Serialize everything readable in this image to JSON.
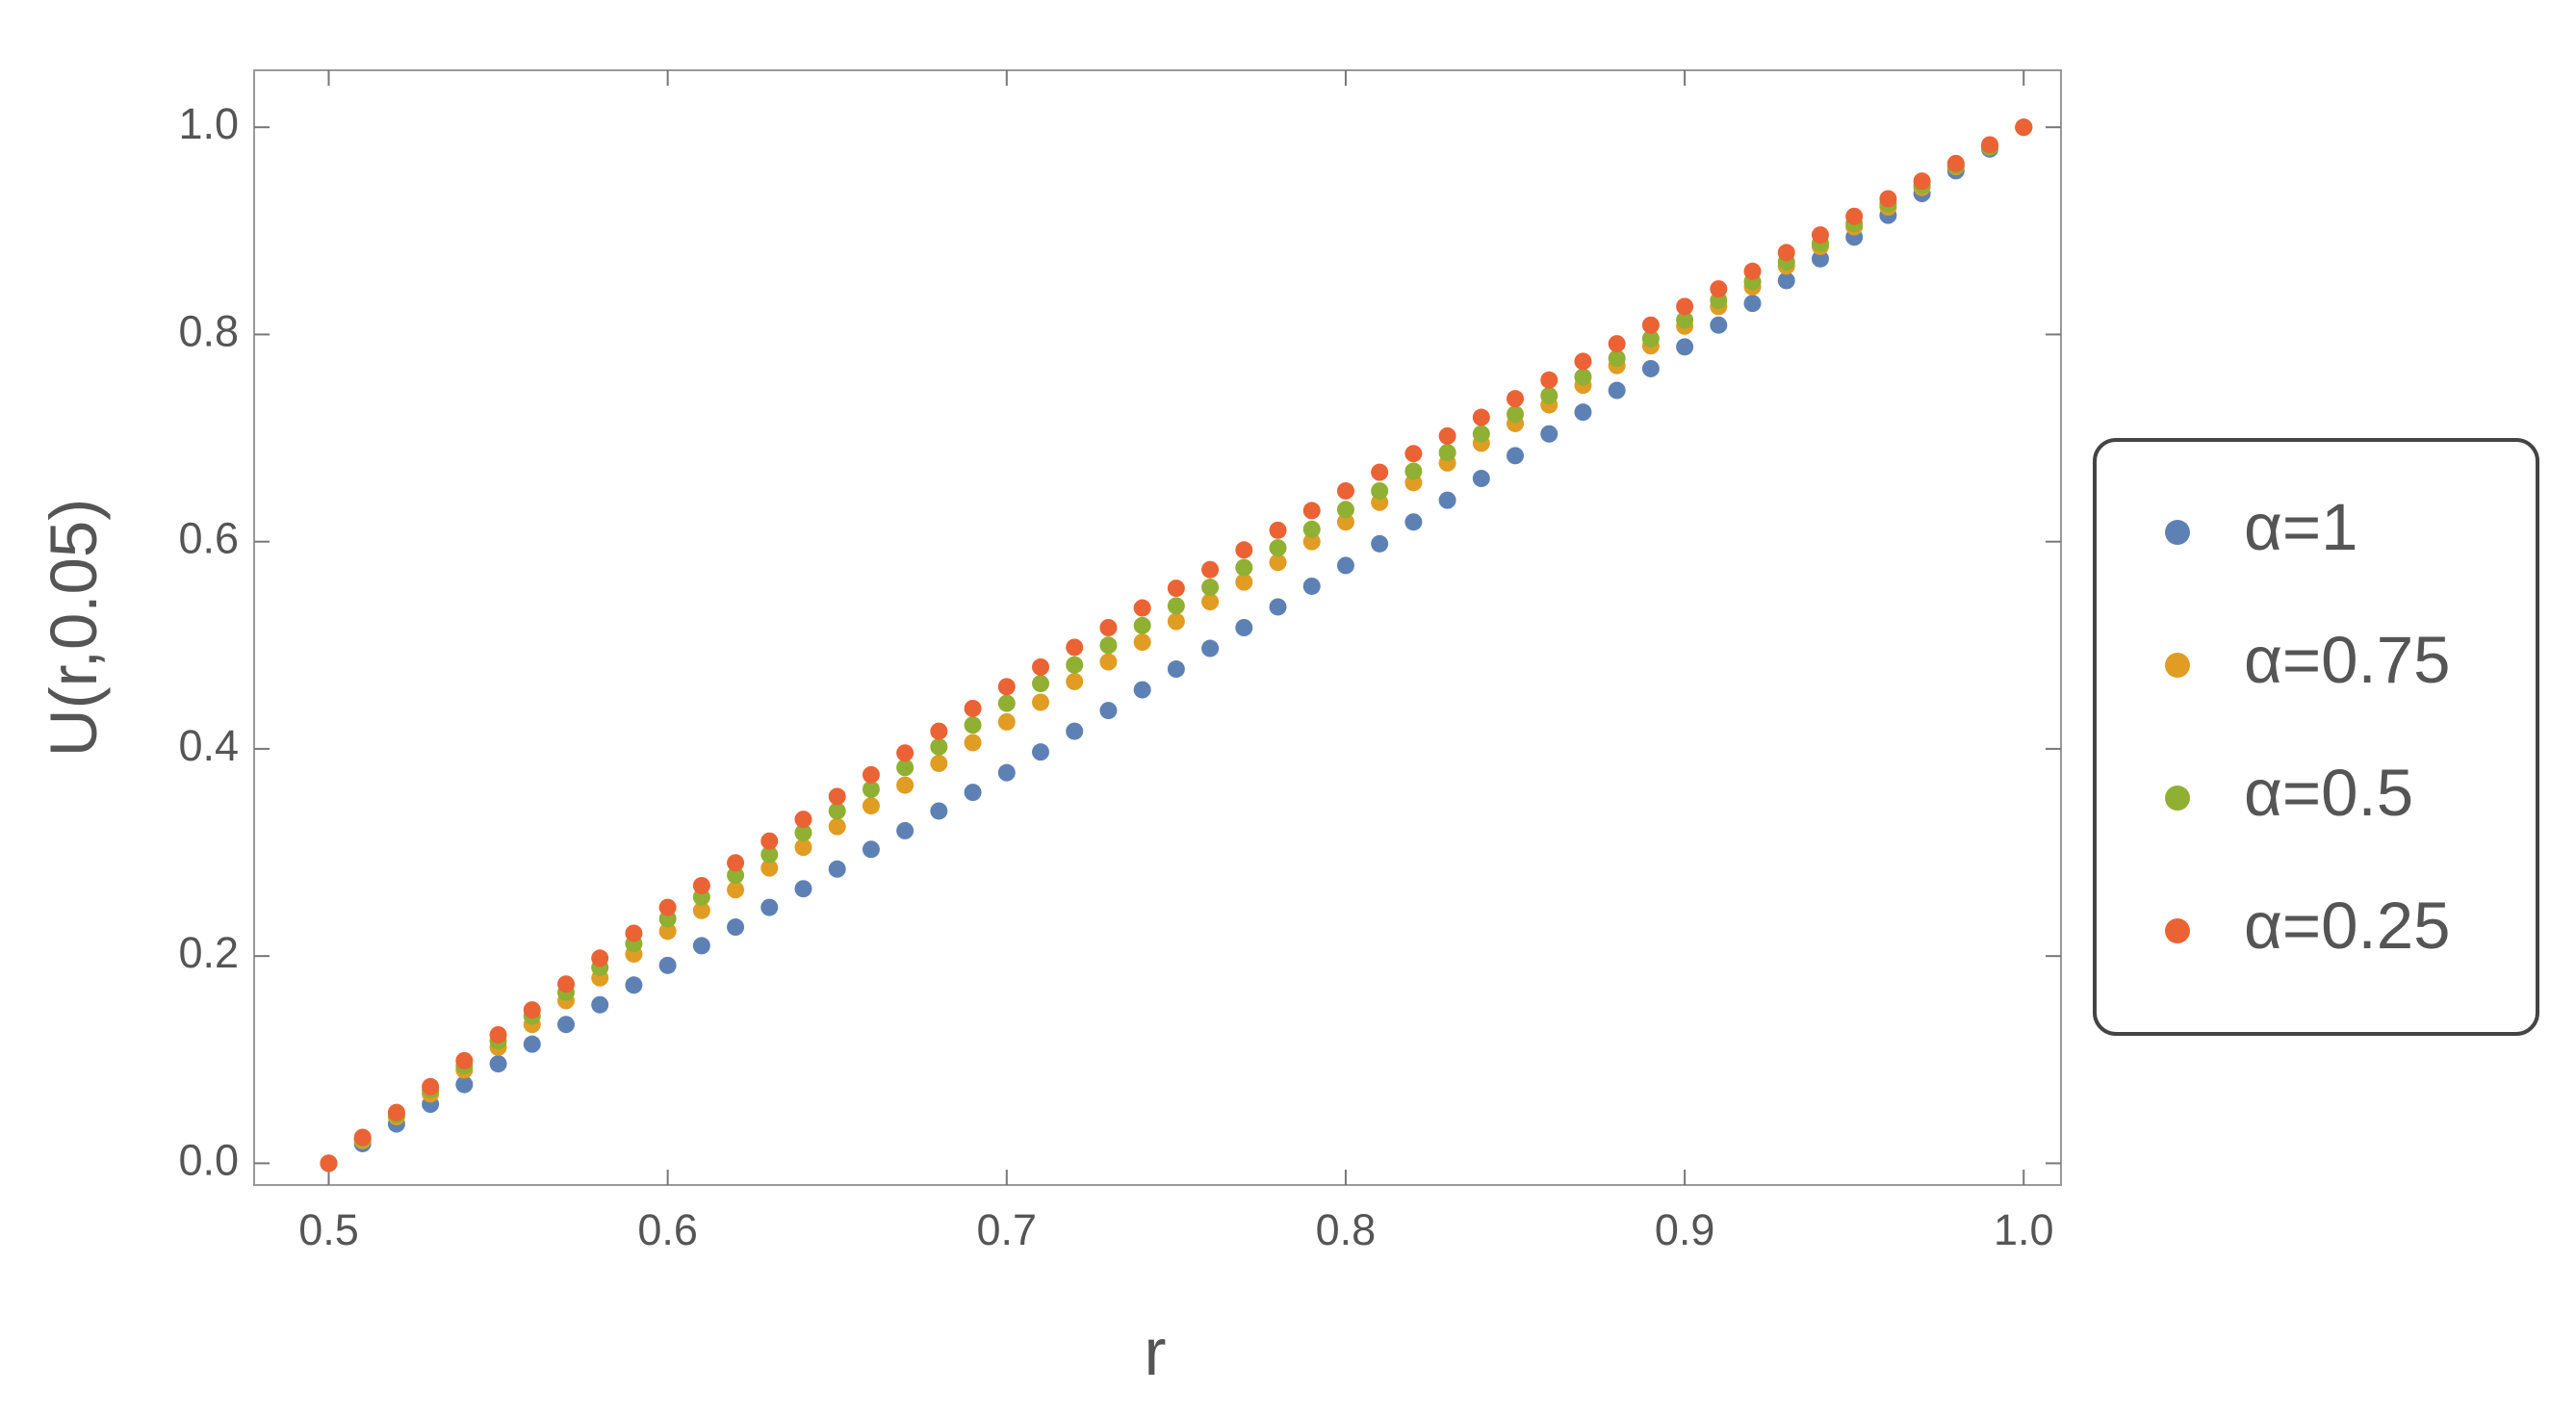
{
  "chart_data": {
    "type": "scatter",
    "x_label": "r",
    "y_label": "U(r,0.05)",
    "x": [
      0.5,
      0.51,
      0.52,
      0.53,
      0.54,
      0.55,
      0.56,
      0.57,
      0.58,
      0.59,
      0.6,
      0.61,
      0.62,
      0.63,
      0.64,
      0.65,
      0.66,
      0.67,
      0.68,
      0.69,
      0.7,
      0.71,
      0.72,
      0.73,
      0.74,
      0.75,
      0.76,
      0.77,
      0.78,
      0.79,
      0.8,
      0.81,
      0.82,
      0.83,
      0.84,
      0.85,
      0.86,
      0.87,
      0.88,
      0.89,
      0.9,
      0.91,
      0.92,
      0.93,
      0.94,
      0.95,
      0.96,
      0.97,
      0.98,
      0.99,
      1.0
    ],
    "series": [
      {
        "name": "α=1",
        "color": "#5e81b5",
        "values": [
          0,
          0.019,
          0.038,
          0.057,
          0.076,
          0.096,
          0.115,
          0.134,
          0.153,
          0.172,
          0.191,
          0.21,
          0.228,
          0.247,
          0.265,
          0.284,
          0.303,
          0.321,
          0.34,
          0.358,
          0.377,
          0.397,
          0.417,
          0.437,
          0.457,
          0.477,
          0.497,
          0.517,
          0.537,
          0.557,
          0.577,
          0.598,
          0.619,
          0.64,
          0.661,
          0.683,
          0.704,
          0.725,
          0.746,
          0.767,
          0.788,
          0.809,
          0.83,
          0.852,
          0.873,
          0.894,
          0.915,
          0.936,
          0.958,
          0.979,
          1
        ]
      },
      {
        "name": "α=0.75",
        "color": "#e19c24",
        "values": [
          0,
          0.022,
          0.045,
          0.067,
          0.09,
          0.112,
          0.134,
          0.157,
          0.179,
          0.202,
          0.224,
          0.244,
          0.264,
          0.285,
          0.305,
          0.325,
          0.345,
          0.365,
          0.386,
          0.406,
          0.426,
          0.445,
          0.465,
          0.484,
          0.503,
          0.523,
          0.542,
          0.561,
          0.58,
          0.6,
          0.619,
          0.638,
          0.657,
          0.676,
          0.695,
          0.714,
          0.732,
          0.751,
          0.77,
          0.789,
          0.808,
          0.827,
          0.846,
          0.866,
          0.885,
          0.904,
          0.923,
          0.942,
          0.962,
          0.981,
          1
        ]
      },
      {
        "name": "α=0.5",
        "color": "#8fb032",
        "values": [
          0,
          0.024,
          0.047,
          0.071,
          0.094,
          0.118,
          0.142,
          0.165,
          0.189,
          0.212,
          0.236,
          0.257,
          0.278,
          0.298,
          0.319,
          0.34,
          0.361,
          0.382,
          0.402,
          0.423,
          0.444,
          0.463,
          0.481,
          0.5,
          0.519,
          0.538,
          0.556,
          0.575,
          0.594,
          0.612,
          0.631,
          0.649,
          0.668,
          0.686,
          0.704,
          0.723,
          0.741,
          0.759,
          0.777,
          0.796,
          0.814,
          0.833,
          0.851,
          0.87,
          0.888,
          0.907,
          0.926,
          0.944,
          0.963,
          0.981,
          1
        ]
      },
      {
        "name": "α=0.25",
        "color": "#eb6235",
        "values": [
          0,
          0.025,
          0.049,
          0.074,
          0.099,
          0.124,
          0.148,
          0.173,
          0.198,
          0.222,
          0.247,
          0.268,
          0.29,
          0.311,
          0.332,
          0.354,
          0.375,
          0.396,
          0.417,
          0.439,
          0.46,
          0.479,
          0.498,
          0.517,
          0.536,
          0.555,
          0.573,
          0.592,
          0.611,
          0.63,
          0.649,
          0.667,
          0.685,
          0.702,
          0.72,
          0.738,
          0.756,
          0.774,
          0.791,
          0.809,
          0.827,
          0.844,
          0.861,
          0.879,
          0.896,
          0.914,
          0.931,
          0.948,
          0.965,
          0.983,
          1
        ]
      }
    ],
    "xlim": [
      0.478,
      1.011
    ],
    "ylim": [
      -0.021,
      1.055
    ],
    "xticks": [
      0.5,
      0.6,
      0.7,
      0.8,
      0.9,
      {
        "value": 1,
        "label": "1.0"
      }
    ],
    "yticks": [
      {
        "value": 0,
        "label": "0.0"
      },
      0.2,
      0.4,
      0.6,
      0.8,
      {
        "value": 1,
        "label": "1.0"
      }
    ],
    "legend": "right"
  }
}
